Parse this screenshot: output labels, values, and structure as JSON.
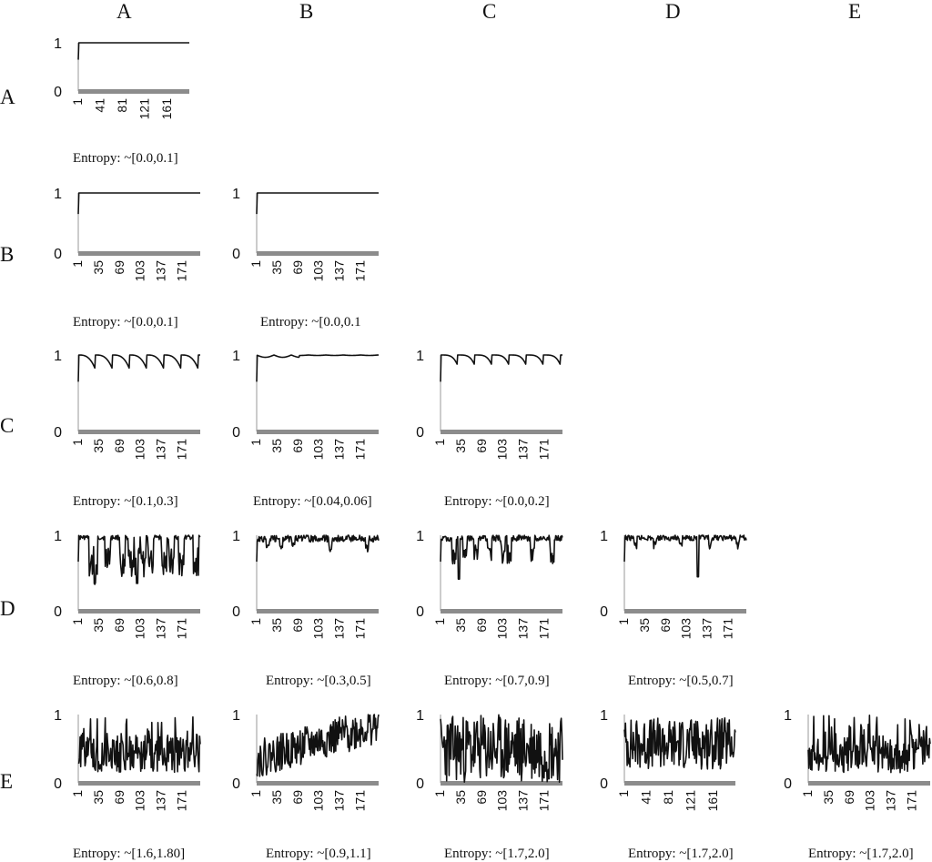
{
  "column_headers": [
    "A",
    "B",
    "C",
    "D",
    "E"
  ],
  "row_headers": [
    "A",
    "B",
    "C",
    "D",
    "E"
  ],
  "chart_data": [
    {
      "type": "line",
      "row": "A",
      "col": "A",
      "entropy": "Entropy: ~[0.0,0.1]",
      "yticks": [
        "1",
        "0"
      ],
      "ylim": [
        0,
        1
      ],
      "x_tick_labels": [
        "1",
        "41",
        "81",
        "121",
        "161"
      ],
      "pattern": "flat",
      "seed": 11
    },
    {
      "type": "line",
      "row": "B",
      "col": "A",
      "entropy": "Entropy: ~[0.0,0.1]",
      "yticks": [
        "1",
        "0"
      ],
      "ylim": [
        0,
        1
      ],
      "x_tick_labels": [
        "1",
        "35",
        "69",
        "103",
        "137",
        "171"
      ],
      "pattern": "flat",
      "seed": 12
    },
    {
      "type": "line",
      "row": "B",
      "col": "B",
      "entropy": "Entropy: ~[0.0,0.1",
      "yticks": [
        "1",
        "0"
      ],
      "ylim": [
        0,
        1
      ],
      "x_tick_labels": [
        "1",
        "35",
        "69",
        "103",
        "137",
        "171"
      ],
      "pattern": "flat",
      "seed": 13
    },
    {
      "type": "line",
      "row": "C",
      "col": "A",
      "entropy": "Entropy: ~[0.1,0.3]",
      "yticks": [
        "1",
        "0"
      ],
      "ylim": [
        0,
        1
      ],
      "x_tick_labels": [
        "1",
        "35",
        "69",
        "103",
        "137",
        "171"
      ],
      "pattern": "periodic-deep",
      "seed": 14
    },
    {
      "type": "line",
      "row": "C",
      "col": "B",
      "entropy": "Entropy: ~[0.04,0.06]",
      "yticks": [
        "1",
        "0"
      ],
      "ylim": [
        0,
        1
      ],
      "x_tick_labels": [
        "1",
        "35",
        "69",
        "103",
        "137",
        "171"
      ],
      "pattern": "nearly-flat",
      "seed": 15
    },
    {
      "type": "line",
      "row": "C",
      "col": "C",
      "entropy": "Entropy: ~[0.0,0.2]",
      "yticks": [
        "1",
        "0"
      ],
      "ylim": [
        0,
        1
      ],
      "x_tick_labels": [
        "1",
        "35",
        "69",
        "103",
        "137",
        "171"
      ],
      "pattern": "periodic-shallow",
      "seed": 16
    },
    {
      "type": "line",
      "row": "D",
      "col": "A",
      "entropy": "Entropy: ~[0.6,0.8]",
      "yticks": [
        "1",
        "0"
      ],
      "ylim": [
        0,
        1
      ],
      "x_tick_labels": [
        "1",
        "35",
        "69",
        "103",
        "137",
        "171"
      ],
      "pattern": "dips-deep",
      "seed": 17
    },
    {
      "type": "line",
      "row": "D",
      "col": "B",
      "entropy": "Entropy: ~[0.3,0.5]",
      "yticks": [
        "1",
        "0"
      ],
      "ylim": [
        0,
        1
      ],
      "x_tick_labels": [
        "1",
        "35",
        "69",
        "103",
        "137",
        "171"
      ],
      "pattern": "dips-light",
      "seed": 18
    },
    {
      "type": "line",
      "row": "D",
      "col": "C",
      "entropy": "Entropy: ~[0.7,0.9]",
      "yticks": [
        "1",
        "0"
      ],
      "ylim": [
        0,
        1
      ],
      "x_tick_labels": [
        "1",
        "35",
        "69",
        "103",
        "137",
        "171"
      ],
      "pattern": "dips-mid",
      "seed": 19
    },
    {
      "type": "line",
      "row": "D",
      "col": "D",
      "entropy": "Entropy: ~[0.5,0.7]",
      "yticks": [
        "1",
        "0"
      ],
      "ylim": [
        0,
        1
      ],
      "x_tick_labels": [
        "1",
        "35",
        "69",
        "103",
        "137",
        "171"
      ],
      "pattern": "dips-sparse",
      "seed": 20
    },
    {
      "type": "line",
      "row": "E",
      "col": "A",
      "entropy": "Entropy: ~[1.6,1.80]",
      "yticks": [
        "1",
        "0"
      ],
      "ylim": [
        0,
        1
      ],
      "x_tick_labels": [
        "1",
        "35",
        "69",
        "103",
        "137",
        "171"
      ],
      "pattern": "noisy-low",
      "seed": 21
    },
    {
      "type": "line",
      "row": "E",
      "col": "B",
      "entropy": "Entropy: ~[0.9,1.1]",
      "yticks": [
        "1",
        "0"
      ],
      "ylim": [
        0,
        1
      ],
      "x_tick_labels": [
        "1",
        "35",
        "69",
        "103",
        "137",
        "171"
      ],
      "pattern": "noisy-rising",
      "seed": 22
    },
    {
      "type": "line",
      "row": "E",
      "col": "C",
      "entropy": "Entropy: ~[1.7,2.0]",
      "yticks": [
        "1",
        "0"
      ],
      "ylim": [
        0,
        1
      ],
      "x_tick_labels": [
        "1",
        "35",
        "69",
        "103",
        "137",
        "171"
      ],
      "pattern": "noisy-full",
      "seed": 23
    },
    {
      "type": "line",
      "row": "E",
      "col": "D",
      "entropy": "Entropy: ~[1.7,2.0]",
      "yticks": [
        "1",
        "0"
      ],
      "ylim": [
        0,
        1
      ],
      "x_tick_labels": [
        "1",
        "41",
        "81",
        "121",
        "161"
      ],
      "pattern": "noisy-mid",
      "seed": 24
    },
    {
      "type": "line",
      "row": "E",
      "col": "E",
      "entropy": "Entropy: ~[1.7,2.0]",
      "yticks": [
        "1",
        "0"
      ],
      "ylim": [
        0,
        1
      ],
      "x_tick_labels": [
        "1",
        "35",
        "69",
        "103",
        "137",
        "171"
      ],
      "pattern": "noisy-low",
      "seed": 25
    }
  ]
}
